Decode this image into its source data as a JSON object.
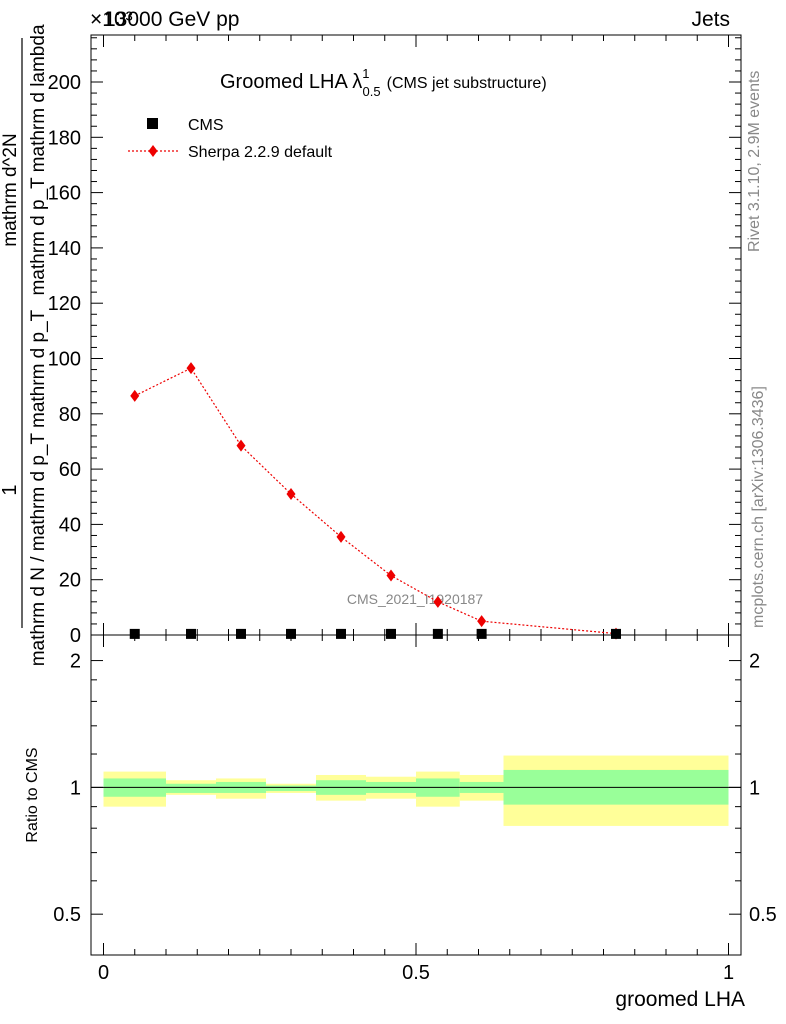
{
  "header": {
    "left": "13000 GeV pp",
    "right": "Jets",
    "exponent": "×10³"
  },
  "side_labels": {
    "rivet": "Rivet 3.1.10,  2.9M events",
    "mcplots": "mcplots.cern.ch [arXiv:1306.3436]"
  },
  "watermark": "CMS_2021_I1920187",
  "colors": {
    "mc": "#ee0000",
    "band_inner": "#99ff99",
    "band_outer": "#ffff99",
    "data": "#000000"
  },
  "chart_data": [
    {
      "type": "line",
      "title": "Groomed LHA",
      "title_symbol": "λ",
      "title_sup": "1",
      "title_sub": "0.5",
      "title_suffix": "(CMS jet substructure)",
      "ylabel_parts": [
        "1",
        "mathrm d N / mathrm d p_T mathrm d p_T",
        "mathrm d^2N",
        "mathrm d p_T mathrm d lambda"
      ],
      "xlim": [
        -0.02,
        1.02
      ],
      "ylim": [
        0,
        217
      ],
      "yticks": [
        0,
        20,
        40,
        60,
        80,
        100,
        120,
        140,
        160,
        180,
        200
      ],
      "ytick_labels": [
        "0",
        "20",
        "40",
        "60",
        "80",
        "100",
        "120",
        "140",
        "160",
        "180",
        "200"
      ],
      "legend": [
        {
          "name": "CMS",
          "marker": "square"
        },
        {
          "name": "Sherpa 2.2.9 default",
          "marker": "diamond"
        }
      ],
      "series": [
        {
          "name": "CMS",
          "x": [
            0.05,
            0.14,
            0.22,
            0.3,
            0.38,
            0.46,
            0.535,
            0.605,
            0.82
          ],
          "y": [
            0.4,
            0.4,
            0.4,
            0.4,
            0.4,
            0.4,
            0.4,
            0.4,
            0.4
          ]
        },
        {
          "name": "Sherpa 2.2.9 default",
          "x": [
            0.05,
            0.14,
            0.22,
            0.3,
            0.38,
            0.46,
            0.535,
            0.605,
            0.82
          ],
          "y": [
            86.5,
            96.5,
            68.5,
            51,
            35.5,
            21.5,
            12,
            5,
            0.5
          ]
        }
      ]
    },
    {
      "type": "area",
      "ylabel": "Ratio to CMS",
      "xlabel": "groomed LHA",
      "xlim": [
        -0.02,
        1.02
      ],
      "ylim": [
        0.4,
        2.3
      ],
      "xticks": [
        0,
        0.5,
        1
      ],
      "xtick_labels": [
        "0",
        "0.5",
        "1"
      ],
      "yticks": [
        0.5,
        1,
        2
      ],
      "ytick_labels": [
        "0.5",
        "1",
        "2"
      ],
      "bins": [
        {
          "lo": 0.0,
          "hi": 0.1,
          "inner": [
            0.95,
            1.05
          ],
          "outer": [
            0.9,
            1.09
          ]
        },
        {
          "lo": 0.1,
          "hi": 0.18,
          "inner": [
            0.97,
            1.02
          ],
          "outer": [
            0.96,
            1.04
          ]
        },
        {
          "lo": 0.18,
          "hi": 0.26,
          "inner": [
            0.97,
            1.03
          ],
          "outer": [
            0.94,
            1.05
          ]
        },
        {
          "lo": 0.26,
          "hi": 0.34,
          "inner": [
            0.98,
            1.01
          ],
          "outer": [
            0.97,
            1.02
          ]
        },
        {
          "lo": 0.34,
          "hi": 0.42,
          "inner": [
            0.96,
            1.04
          ],
          "outer": [
            0.93,
            1.07
          ]
        },
        {
          "lo": 0.42,
          "hi": 0.5,
          "inner": [
            0.97,
            1.03
          ],
          "outer": [
            0.94,
            1.06
          ]
        },
        {
          "lo": 0.5,
          "hi": 0.57,
          "inner": [
            0.95,
            1.05
          ],
          "outer": [
            0.9,
            1.09
          ]
        },
        {
          "lo": 0.57,
          "hi": 0.64,
          "inner": [
            0.97,
            1.03
          ],
          "outer": [
            0.93,
            1.07
          ]
        },
        {
          "lo": 0.64,
          "hi": 1.0,
          "inner": [
            0.91,
            1.1
          ],
          "outer": [
            0.81,
            1.19
          ]
        }
      ]
    }
  ]
}
